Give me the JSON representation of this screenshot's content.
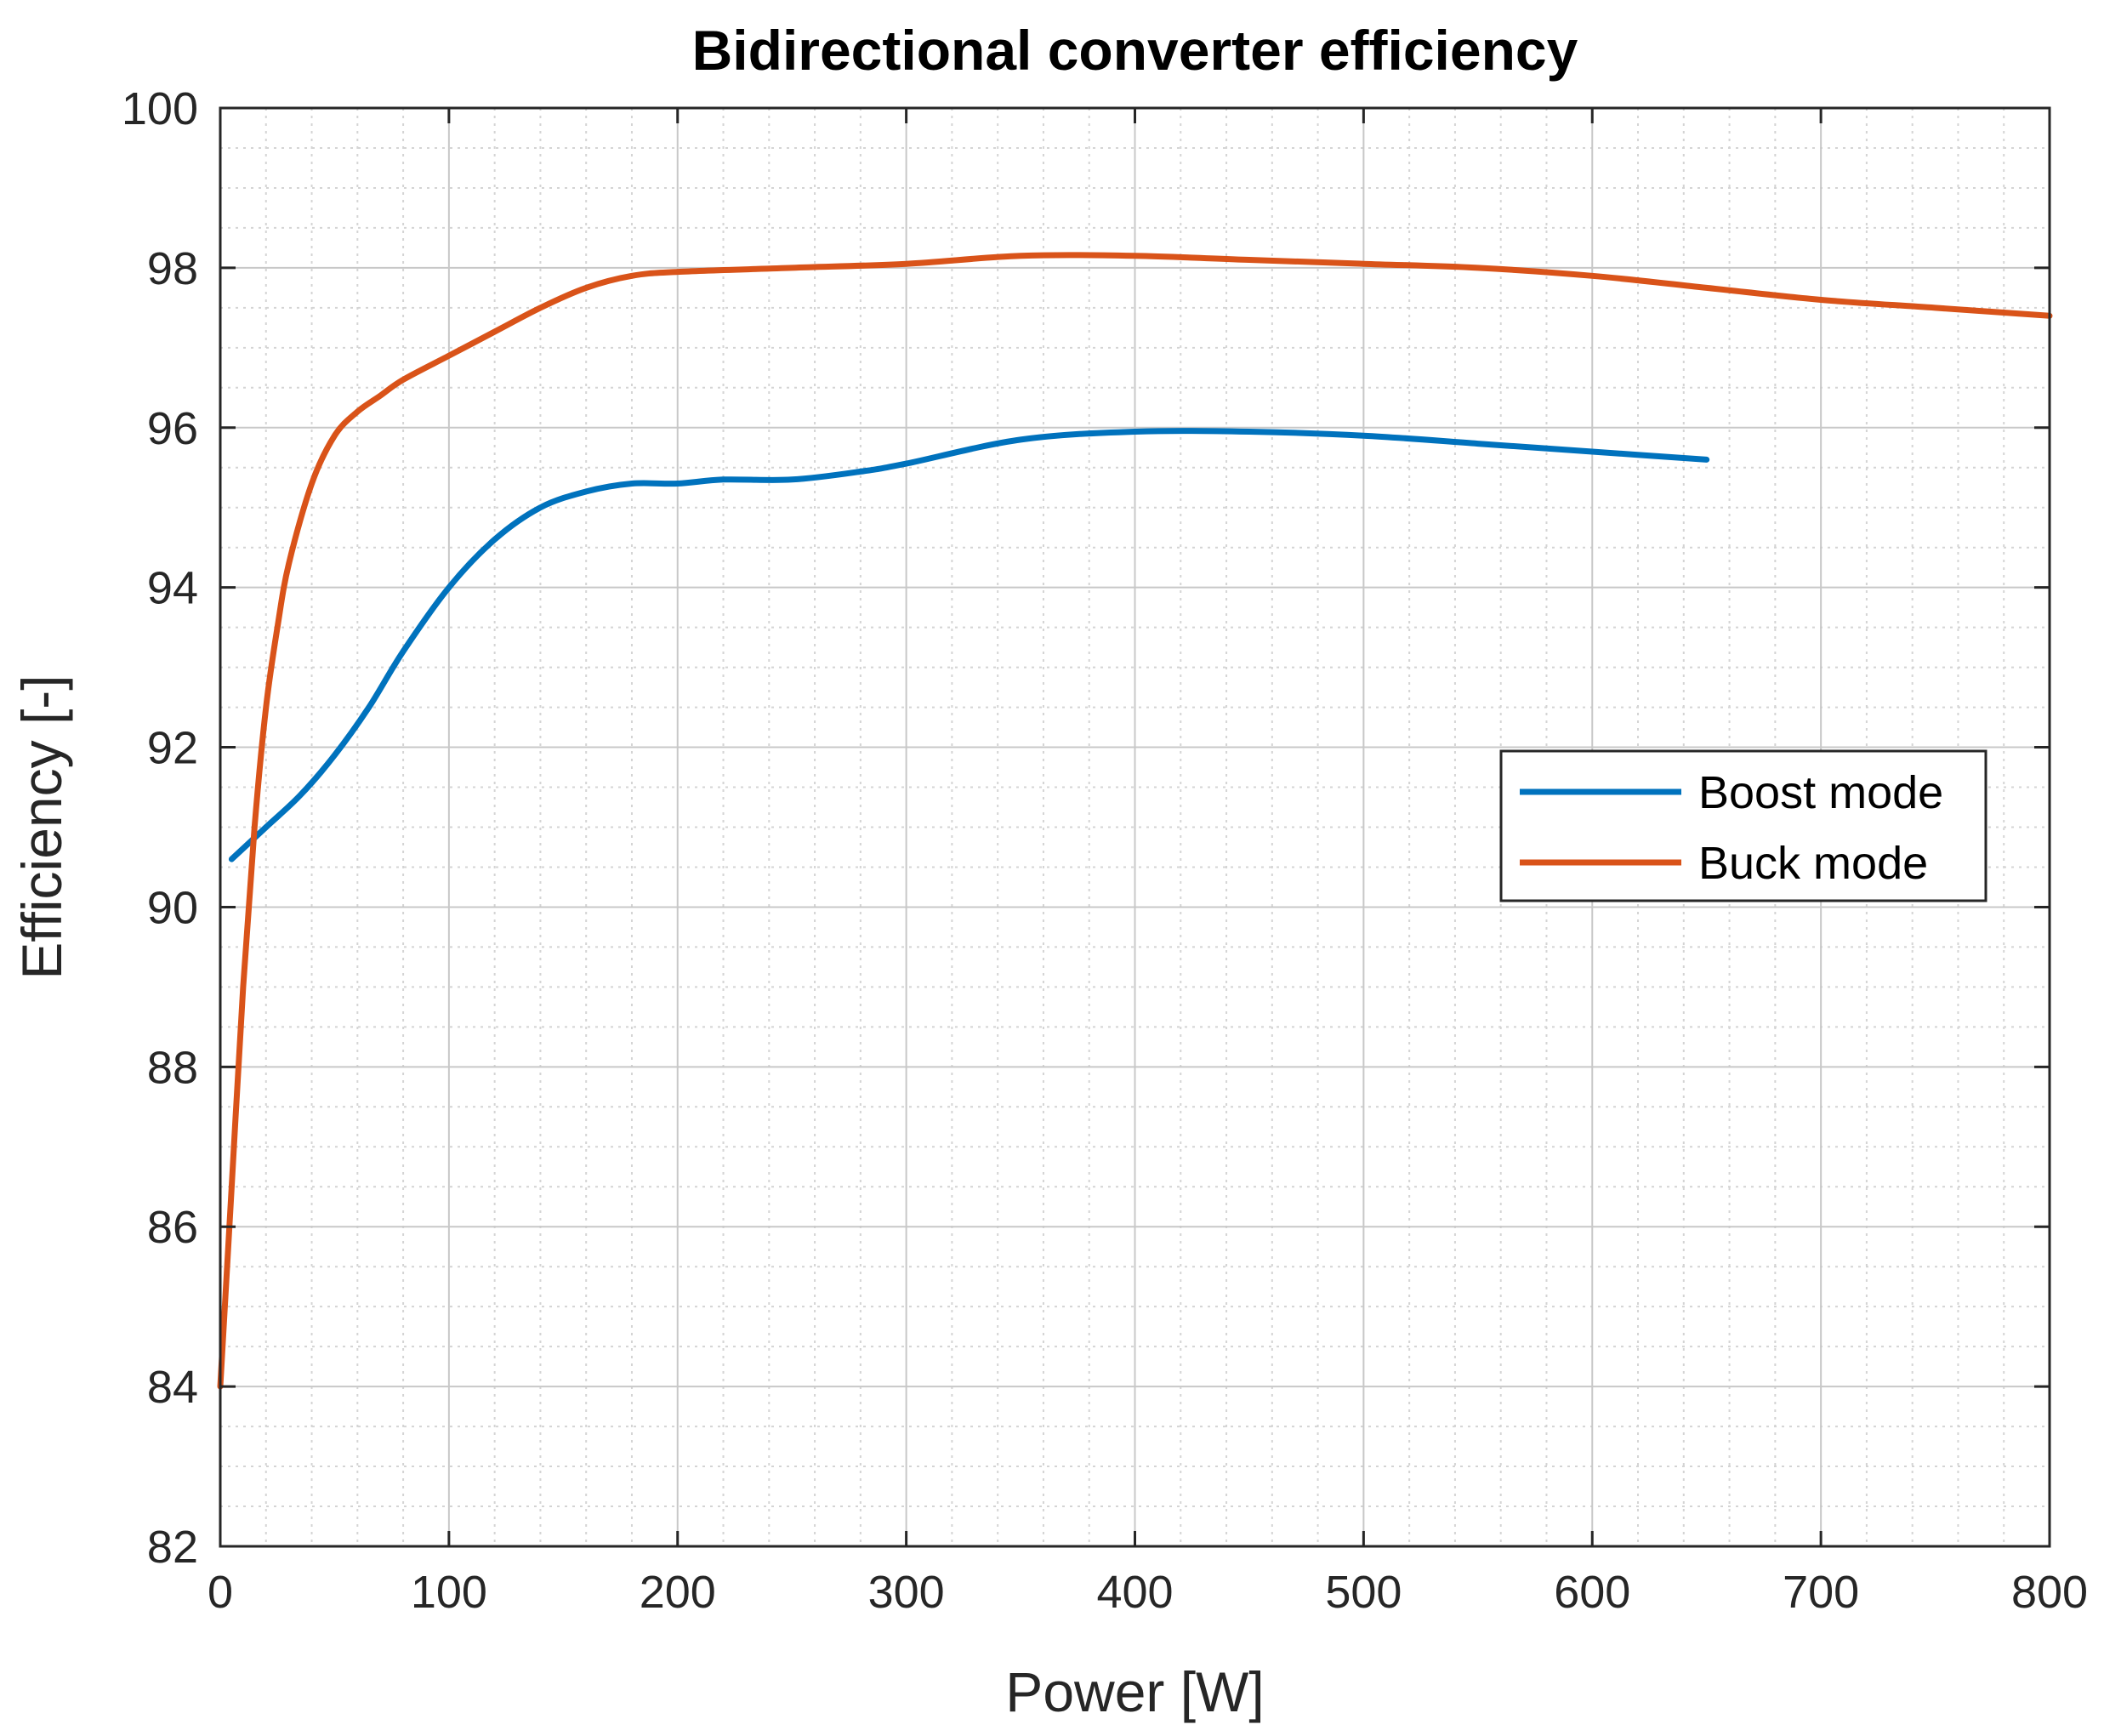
{
  "chart_data": {
    "type": "line",
    "title": "Bidirectional converter efficiency",
    "xlabel": "Power [W]",
    "ylabel": "Efficiency [-]",
    "xlim": [
      0,
      800
    ],
    "ylim": [
      82,
      100
    ],
    "xticks": [
      0,
      100,
      200,
      300,
      400,
      500,
      600,
      700,
      800
    ],
    "yticks": [
      82,
      84,
      86,
      88,
      90,
      92,
      94,
      96,
      98,
      100
    ],
    "grid": true,
    "minor_grid": true,
    "legend_position": "right",
    "series": [
      {
        "name": "Boost mode",
        "color": "#0072BD",
        "x": [
          5,
          20,
          35,
          50,
          65,
          80,
          100,
          120,
          140,
          160,
          180,
          200,
          220,
          250,
          280,
          300,
          350,
          400,
          450,
          500,
          550,
          600,
          650
        ],
        "y": [
          90.6,
          91.0,
          91.4,
          91.9,
          92.5,
          93.2,
          94.0,
          94.6,
          95.0,
          95.2,
          95.3,
          95.3,
          95.35,
          95.35,
          95.45,
          95.55,
          95.85,
          95.95,
          95.95,
          95.9,
          95.8,
          95.7,
          95.6
        ]
      },
      {
        "name": "Buck mode",
        "color": "#D95319",
        "x": [
          0,
          5,
          10,
          15,
          20,
          25,
          30,
          40,
          50,
          60,
          70,
          80,
          100,
          120,
          140,
          160,
          180,
          200,
          250,
          300,
          350,
          400,
          450,
          500,
          550,
          600,
          650,
          700,
          750,
          800
        ],
        "y": [
          84.0,
          86.5,
          89.0,
          91.0,
          92.5,
          93.5,
          94.3,
          95.3,
          95.9,
          96.2,
          96.4,
          96.6,
          96.9,
          97.2,
          97.5,
          97.75,
          97.9,
          97.95,
          98.0,
          98.05,
          98.15,
          98.15,
          98.1,
          98.05,
          98.0,
          97.9,
          97.75,
          97.6,
          97.5,
          97.4
        ]
      }
    ]
  }
}
